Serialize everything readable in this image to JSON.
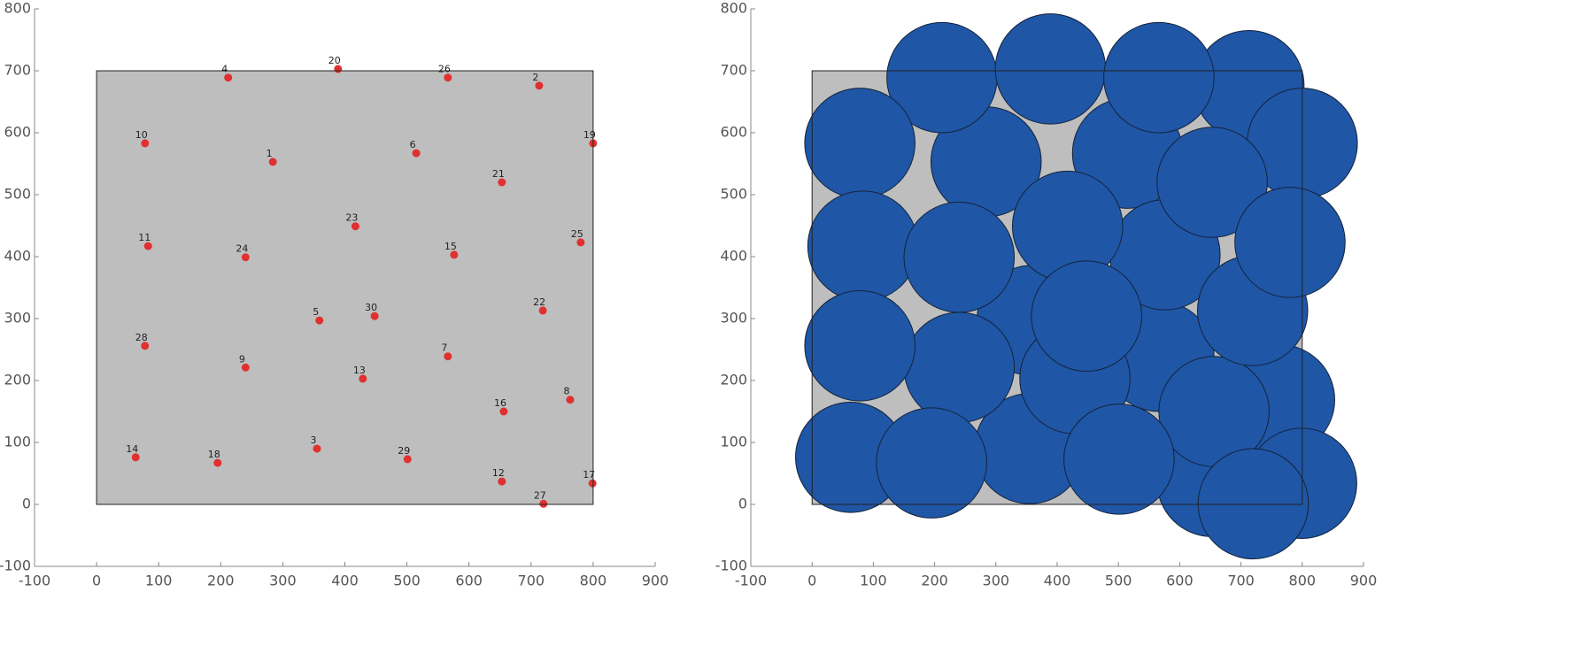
{
  "chart_data": [
    {
      "type": "scatter",
      "labels": [
        "1",
        "2",
        "3",
        "4",
        "5",
        "6",
        "7",
        "8",
        "9",
        "10",
        "11",
        "12",
        "13",
        "14",
        "15",
        "16",
        "17",
        "18",
        "19",
        "20",
        "21",
        "22",
        "23",
        "24",
        "25",
        "26",
        "27",
        "28",
        "29",
        "30"
      ],
      "x": [
        284,
        713,
        355,
        212,
        359,
        515,
        566,
        763,
        240,
        78,
        83,
        653,
        429,
        63,
        576,
        656,
        799,
        195,
        800,
        389,
        653,
        719,
        417,
        240,
        780,
        566,
        720,
        78,
        501,
        448
      ],
      "y": [
        553,
        676,
        90,
        689,
        297,
        567,
        239,
        169,
        221,
        583,
        417,
        37,
        203,
        76,
        403,
        150,
        34,
        67,
        583,
        703,
        520,
        313,
        449,
        399,
        423,
        689,
        1,
        256,
        73,
        304
      ],
      "color": "#e03030",
      "region": {
        "x": [
          0,
          800
        ],
        "y": [
          0,
          700
        ],
        "color": "#bebebe"
      },
      "xlim": [
        -100,
        900
      ],
      "ylim": [
        -100,
        800
      ],
      "xticks": [
        -100,
        0,
        100,
        200,
        300,
        400,
        500,
        600,
        700,
        800,
        900
      ],
      "yticks": [
        -100,
        0,
        100,
        200,
        300,
        400,
        500,
        600,
        700,
        800
      ]
    },
    {
      "type": "bubble",
      "x": [
        284,
        713,
        355,
        212,
        359,
        515,
        566,
        763,
        240,
        78,
        83,
        653,
        429,
        63,
        576,
        656,
        799,
        195,
        800,
        389,
        653,
        719,
        417,
        240,
        780,
        566,
        720,
        78,
        501,
        448
      ],
      "y": [
        553,
        676,
        90,
        689,
        297,
        567,
        239,
        169,
        221,
        583,
        417,
        37,
        203,
        76,
        403,
        150,
        34,
        67,
        583,
        703,
        520,
        313,
        449,
        399,
        423,
        689,
        1,
        256,
        73,
        304
      ],
      "radius": 90,
      "color": "#1f56a6",
      "region": {
        "x": [
          0,
          800
        ],
        "y": [
          0,
          700
        ],
        "color": "#bebebe"
      },
      "xlim": [
        -100,
        900
      ],
      "ylim": [
        -100,
        800
      ],
      "xticks": [
        -100,
        0,
        100,
        200,
        300,
        400,
        500,
        600,
        700,
        800,
        900
      ],
      "yticks": [
        -100,
        0,
        100,
        200,
        300,
        400,
        500,
        600,
        700,
        800
      ]
    }
  ]
}
